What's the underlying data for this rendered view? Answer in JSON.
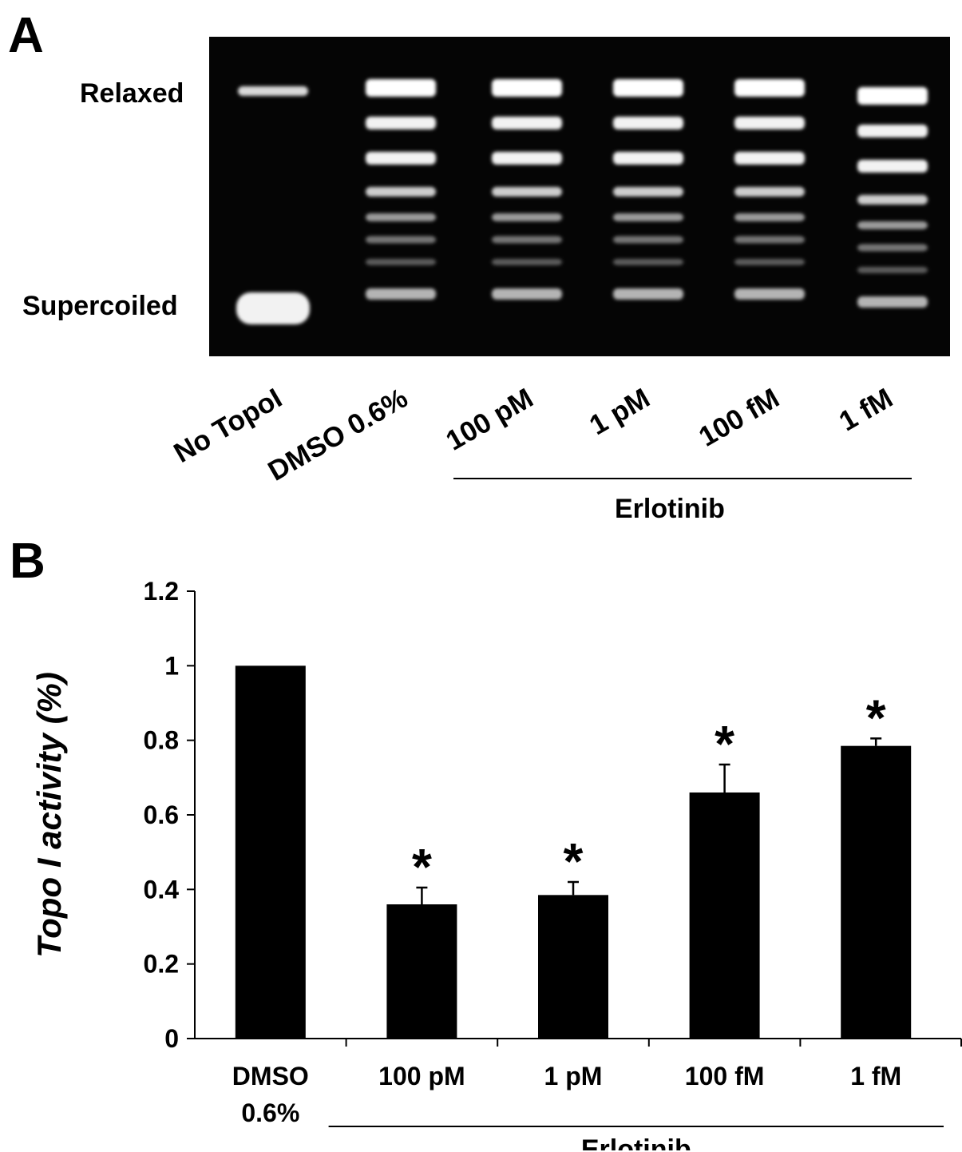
{
  "panel_a": {
    "letter": "A",
    "band_labels": {
      "relaxed": "Relaxed",
      "supercoiled": "Supercoiled"
    },
    "lanes": [
      "No TopoI",
      "DMSO 0.6%",
      "100 pM",
      "1 pM",
      "100 fM",
      "1 fM"
    ],
    "group_label": "Erlotinib",
    "gel_background": "#050505",
    "band_color": "#ffffff"
  },
  "panel_b": {
    "letter": "B",
    "group_label": "Erlotinib",
    "significance_marker": "*"
  },
  "chart_data": {
    "type": "bar",
    "categories": [
      [
        "DMSO",
        "0.6%"
      ],
      [
        "100 pM"
      ],
      [
        "1 pM"
      ],
      [
        "100 fM"
      ],
      [
        "1 fM"
      ]
    ],
    "values": [
      1.0,
      0.36,
      0.385,
      0.66,
      0.785
    ],
    "error": [
      0,
      0.045,
      0.035,
      0.075,
      0.02
    ],
    "significant": [
      false,
      true,
      true,
      true,
      true
    ],
    "ylabel": "Topo I activity (%)",
    "xlabel": "",
    "ylim": [
      0,
      1.2
    ],
    "yticks": [
      "0",
      "0.2",
      "0.4",
      "0.6",
      "0.8",
      "1",
      "1.2"
    ],
    "bar_color": "#000000",
    "grid": false
  }
}
